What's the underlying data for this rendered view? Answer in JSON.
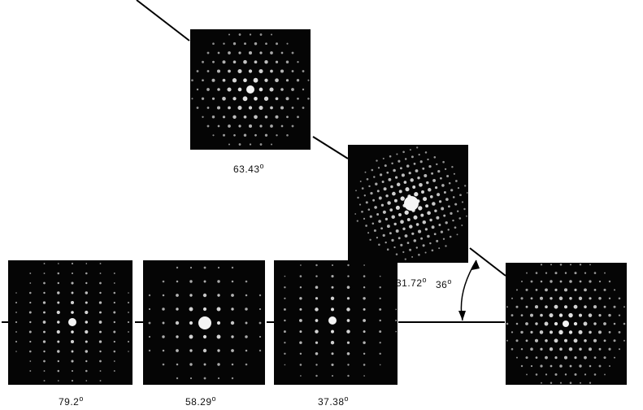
{
  "panels": [
    {
      "id": "panel-top",
      "angle_label": "63.43"
    },
    {
      "id": "panel-middle",
      "angle_label": "31.72"
    },
    {
      "id": "panel-bottom-1",
      "angle_label": "79.2"
    },
    {
      "id": "panel-bottom-2",
      "angle_label": "58.29"
    },
    {
      "id": "panel-bottom-3",
      "angle_label": "37.38"
    },
    {
      "id": "panel-right",
      "angle_label": ""
    }
  ],
  "arc_label": "36",
  "degree_symbol": "o",
  "colors": {
    "background": "#ffffff",
    "panel": "#050505",
    "spot": "#f4f4f4",
    "line": "#000000"
  }
}
